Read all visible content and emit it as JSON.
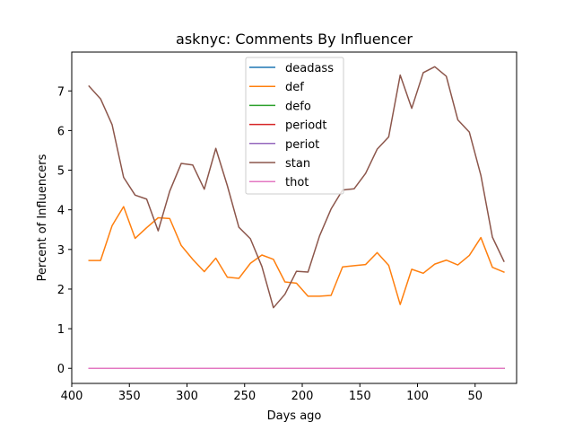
{
  "chart_data": {
    "type": "line",
    "title": "asknyc: Comments By Influencer",
    "xlabel": "Days ago",
    "ylabel": "Percent of Influencers",
    "xlim": [
      400,
      14
    ],
    "ylim": [
      -0.38,
      7.98
    ],
    "x_inverted": true,
    "xticks": [
      400,
      350,
      300,
      250,
      200,
      150,
      100,
      50
    ],
    "yticks": [
      0,
      1,
      2,
      3,
      4,
      5,
      6,
      7
    ],
    "grid": false,
    "legend_position": "upper center",
    "x": [
      385,
      375,
      365,
      355,
      345,
      335,
      325,
      315,
      305,
      295,
      285,
      275,
      265,
      255,
      245,
      235,
      225,
      215,
      205,
      195,
      185,
      175,
      165,
      155,
      145,
      135,
      125,
      115,
      105,
      95,
      85,
      75,
      65,
      55,
      45,
      35,
      25
    ],
    "series": [
      {
        "name": "deadass",
        "color": "#1f77b4",
        "values": [
          0,
          0,
          0,
          0,
          0,
          0,
          0,
          0,
          0,
          0,
          0,
          0,
          0,
          0,
          0,
          0,
          0,
          0,
          0,
          0,
          0,
          0,
          0,
          0,
          0,
          0,
          0,
          0,
          0,
          0,
          0,
          0,
          0,
          0,
          0,
          0,
          0
        ]
      },
      {
        "name": "def",
        "color": "#ff7f0e",
        "values": [
          2.72,
          2.72,
          3.6,
          4.08,
          3.28,
          3.55,
          3.8,
          3.78,
          3.1,
          2.75,
          2.44,
          2.78,
          2.3,
          2.27,
          2.65,
          2.86,
          2.75,
          2.18,
          2.15,
          1.82,
          1.82,
          1.84,
          2.56,
          2.59,
          2.62,
          2.92,
          2.6,
          1.61,
          2.5,
          2.4,
          2.63,
          2.73,
          2.61,
          2.85,
          3.3,
          2.55,
          2.43
        ]
      },
      {
        "name": "defo",
        "color": "#2ca02c",
        "values": [
          0,
          0,
          0,
          0,
          0,
          0,
          0,
          0,
          0,
          0,
          0,
          0,
          0,
          0,
          0,
          0,
          0,
          0,
          0,
          0,
          0,
          0,
          0,
          0,
          0,
          0,
          0,
          0,
          0,
          0,
          0,
          0,
          0,
          0,
          0,
          0,
          0
        ]
      },
      {
        "name": "periodt",
        "color": "#d62728",
        "values": [
          0,
          0,
          0,
          0,
          0,
          0,
          0,
          0,
          0,
          0,
          0,
          0,
          0,
          0,
          0,
          0,
          0,
          0,
          0,
          0,
          0,
          0,
          0,
          0,
          0,
          0,
          0,
          0,
          0,
          0,
          0,
          0,
          0,
          0,
          0,
          0,
          0
        ]
      },
      {
        "name": "periot",
        "color": "#9467bd",
        "values": [
          0,
          0,
          0,
          0,
          0,
          0,
          0,
          0,
          0,
          0,
          0,
          0,
          0,
          0,
          0,
          0,
          0,
          0,
          0,
          0,
          0,
          0,
          0,
          0,
          0,
          0,
          0,
          0,
          0,
          0,
          0,
          0,
          0,
          0,
          0,
          0,
          0
        ]
      },
      {
        "name": "stan",
        "color": "#8c564b",
        "values": [
          7.12,
          6.8,
          6.15,
          4.82,
          4.37,
          4.27,
          3.47,
          4.47,
          5.17,
          5.13,
          4.52,
          5.55,
          4.61,
          3.56,
          3.27,
          2.57,
          1.53,
          1.87,
          2.45,
          2.43,
          3.34,
          4.02,
          4.5,
          4.53,
          4.92,
          5.53,
          5.84,
          7.4,
          6.56,
          7.46,
          7.61,
          7.37,
          6.27,
          5.96,
          4.87,
          3.31,
          2.7
        ]
      },
      {
        "name": "thot",
        "color": "#e377c2",
        "values": [
          0,
          0,
          0,
          0,
          0,
          0,
          0,
          0,
          0,
          0,
          0,
          0,
          0,
          0,
          0,
          0,
          0,
          0,
          0,
          0,
          0,
          0,
          0,
          0,
          0,
          0,
          0,
          0,
          0,
          0,
          0,
          0,
          0,
          0,
          0,
          0,
          0
        ]
      }
    ]
  }
}
